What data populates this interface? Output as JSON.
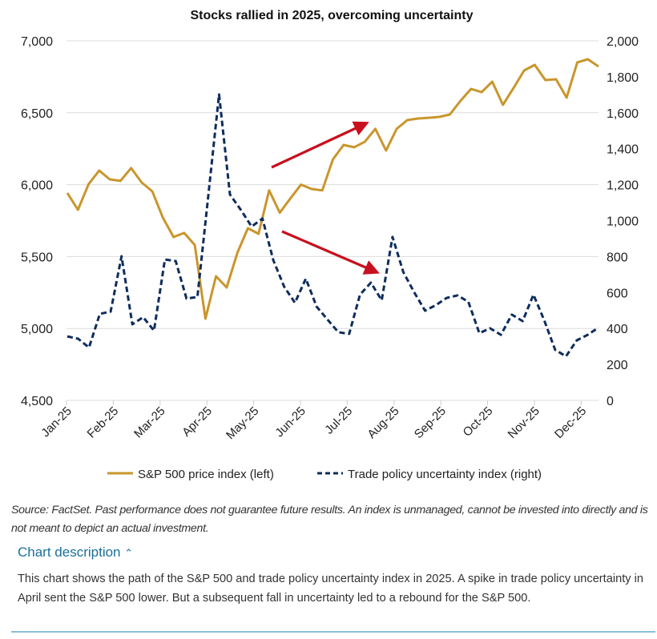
{
  "chart_data": {
    "type": "line",
    "title": "Stocks rallied in 2025, overcoming uncertainty",
    "x_tick_labels": [
      "Jan-25",
      "Feb-25",
      "Mar-25",
      "Apr-25",
      "May-25",
      "Jun-25",
      "Jul-25",
      "Aug-25",
      "Sep-25",
      "Oct-25",
      "Nov-25",
      "Dec-25"
    ],
    "y_left": {
      "ylim": [
        4500,
        7000
      ],
      "ticks": [
        "4,500",
        "5,000",
        "5,500",
        "6,000",
        "6,500",
        "7,000"
      ],
      "tick_values": [
        4500,
        5000,
        5500,
        6000,
        6500,
        7000
      ]
    },
    "y_right": {
      "ylim": [
        0,
        2000
      ],
      "ticks": [
        "0",
        "200",
        "400",
        "600",
        "800",
        "1,000",
        "1,200",
        "1,400",
        "1,600",
        "1,800",
        "2,000"
      ],
      "tick_values": [
        0,
        200,
        400,
        600,
        800,
        1000,
        1200,
        1400,
        1600,
        1800,
        2000
      ]
    },
    "grid": true,
    "legend_position": "bottom",
    "series": [
      {
        "name": "S&P 500 price index (left)",
        "axis": "left",
        "color": "#c9962c",
        "style": "solid",
        "values": [
          5942,
          5825,
          6003,
          6098,
          6037,
          6026,
          6115,
          6015,
          5953,
          5770,
          5636,
          5664,
          5580,
          5068,
          5363,
          5285,
          5525,
          5697,
          5658,
          5960,
          5805,
          5905,
          6000,
          5970,
          5960,
          6176,
          6276,
          6260,
          6298,
          6388,
          6237,
          6388,
          6449,
          6460,
          6465,
          6471,
          6488,
          6582,
          6666,
          6643,
          6716,
          6555,
          6672,
          6794,
          6833,
          6727,
          6733,
          6605,
          6850,
          6872,
          6822
        ]
      },
      {
        "name": "Trade policy uncertainty index (right)",
        "axis": "right",
        "color": "#0e2d5c",
        "style": "dashed",
        "values": [
          356,
          343,
          294,
          481,
          494,
          802,
          423,
          463,
          388,
          784,
          775,
          566,
          575,
          1136,
          1702,
          1145,
          1060,
          967,
          1011,
          780,
          633,
          543,
          677,
          521,
          450,
          379,
          370,
          588,
          655,
          557,
          909,
          713,
          601,
          499,
          530,
          570,
          584,
          548,
          374,
          401,
          365,
          477,
          441,
          588,
          445,
          281,
          245,
          334,
          365,
          405
        ]
      }
    ],
    "annotations": [
      {
        "type": "arrow",
        "color": "#c8101e",
        "direction": "up"
      },
      {
        "type": "arrow",
        "color": "#c8101e",
        "direction": "down"
      }
    ]
  },
  "source_note": "Source: FactSet. Past performance does not guarantee future results. An index is unmanaged, cannot be invested into directly and is not meant to depict an actual investment.",
  "description": {
    "toggle_label": "Chart description",
    "toggle_icon": "chevron-up-icon",
    "text": "This chart shows the path of the S&P 500 and trade policy uncertainty index in 2025. A spike in trade policy uncertainty in April sent the S&P 500 lower. But a subsequent fall in uncertainty led to a rebound for the S&P 500."
  }
}
